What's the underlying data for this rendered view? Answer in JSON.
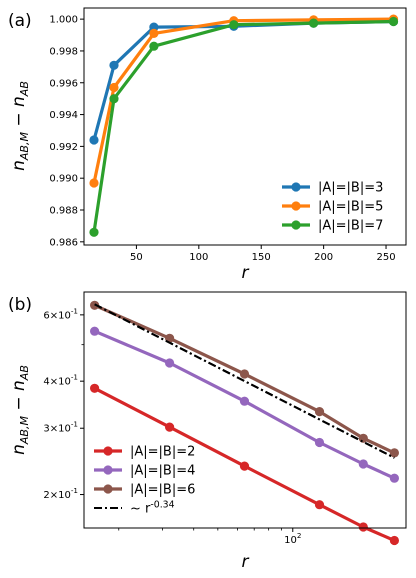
{
  "chart_data": [
    {
      "type": "line",
      "panel_label": "(a)",
      "xlabel": "r",
      "ylabel": "n_{AB,M} − n_{AB}",
      "xscale": "linear",
      "yscale": "linear",
      "xlim": [
        8,
        266
      ],
      "ylim": [
        0.9858,
        1.0007
      ],
      "xticks": [
        50,
        100,
        150,
        200,
        250
      ],
      "yticks": [
        0.986,
        0.988,
        0.99,
        0.992,
        0.994,
        0.996,
        0.998,
        1.0
      ],
      "ytick_labels": [
        "0.986",
        "0.988",
        "0.990",
        "0.992",
        "0.994",
        "0.996",
        "0.998",
        "1.000"
      ],
      "grid": false,
      "legend_position": "lower-right",
      "series": [
        {
          "name": "|A|=|B|=3",
          "color": "#1f77b4",
          "x": [
            16,
            32,
            64,
            128,
            192,
            256
          ],
          "y": [
            0.9924,
            0.9971,
            0.9995,
            0.99955,
            0.99975,
            0.99985
          ]
        },
        {
          "name": "|A|=|B|=5",
          "color": "#ff7f0e",
          "x": [
            16,
            32,
            64,
            128,
            192,
            256
          ],
          "y": [
            0.9897,
            0.9957,
            0.9991,
            0.9999,
            0.99995,
            1.0
          ]
        },
        {
          "name": "|A|=|B|=7",
          "color": "#2ca02c",
          "x": [
            16,
            32,
            64,
            128,
            192,
            256
          ],
          "y": [
            0.9866,
            0.995,
            0.9983,
            0.99965,
            0.99975,
            0.99985
          ]
        }
      ]
    },
    {
      "type": "line",
      "panel_label": "(b)",
      "xlabel": "r",
      "ylabel": "n_{AB,M} − n_{AB}",
      "xscale": "log",
      "yscale": "log",
      "xlim": [
        14.5,
        285
      ],
      "ylim": [
        0.163,
        0.69
      ],
      "xticks": [
        100
      ],
      "xtick_labels": [
        "10^2"
      ],
      "yticks": [
        0.2,
        0.3,
        0.4,
        0.6
      ],
      "ytick_labels": [
        "2×10^{-1}",
        "3×10^{-1}",
        "4×10^{-1}",
        "6×10^{-1}"
      ],
      "grid": false,
      "legend_position": "lower-left",
      "series": [
        {
          "name": "|A|=|B|=2",
          "color": "#d62728",
          "marker": "circle",
          "x": [
            16,
            32,
            64,
            128,
            192,
            256
          ],
          "y": [
            0.383,
            0.302,
            0.238,
            0.188,
            0.164,
            0.151
          ]
        },
        {
          "name": "|A|=|B|=4",
          "color": "#9467bd",
          "marker": "circle",
          "x": [
            16,
            32,
            64,
            128,
            192,
            256
          ],
          "y": [
            0.543,
            0.447,
            0.354,
            0.275,
            0.241,
            0.221
          ]
        },
        {
          "name": "|A|=|B|=6",
          "color": "#8c564b",
          "marker": "circle",
          "x": [
            16,
            32,
            64,
            128,
            192,
            256
          ],
          "y": [
            0.636,
            0.52,
            0.418,
            0.332,
            0.282,
            0.258
          ]
        },
        {
          "name": "~ r^{-0.34}",
          "color": "#000000",
          "dash": "dashdot",
          "marker": "none",
          "x": [
            16,
            256
          ],
          "y": [
            0.64,
            0.2503
          ]
        }
      ]
    }
  ]
}
